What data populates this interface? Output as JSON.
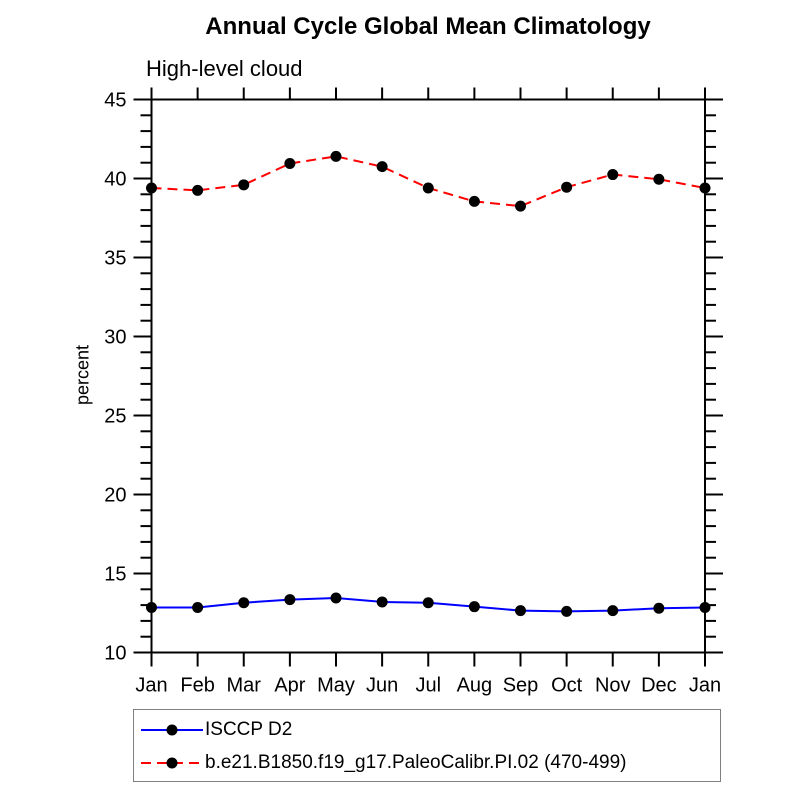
{
  "chart_data": {
    "type": "line",
    "title": "Annual Cycle Global Mean Climatology",
    "subtitle": "High-level cloud",
    "ylabel": "percent",
    "xlabel": "",
    "x_labels": [
      "Jan",
      "Feb",
      "Mar",
      "Apr",
      "May",
      "Jun",
      "Jul",
      "Aug",
      "Sep",
      "Oct",
      "Nov",
      "Dec",
      "Jan"
    ],
    "ylim": [
      10,
      45
    ],
    "ytick_major_step": 5,
    "ytick_minor_step": 1,
    "grid": false,
    "legend_position": "bottom-left-box",
    "axis_color": "#000000",
    "marker_color": "#000000",
    "series": [
      {
        "name": "ISCCP D2",
        "color": "#0000ff",
        "line_style": "solid",
        "marker": "circle",
        "values": [
          12.85,
          12.85,
          13.15,
          13.35,
          13.45,
          13.2,
          13.15,
          12.9,
          12.65,
          12.6,
          12.65,
          12.8,
          12.85
        ]
      },
      {
        "name": "b.e21.B1850.f19_g17.PaleoCalibr.PI.02 (470-499)",
        "color": "#ff0000",
        "line_style": "dashed",
        "marker": "circle",
        "values": [
          39.4,
          39.25,
          39.6,
          40.95,
          41.4,
          40.75,
          39.4,
          38.55,
          38.25,
          39.45,
          40.25,
          39.95,
          39.4
        ]
      }
    ]
  }
}
